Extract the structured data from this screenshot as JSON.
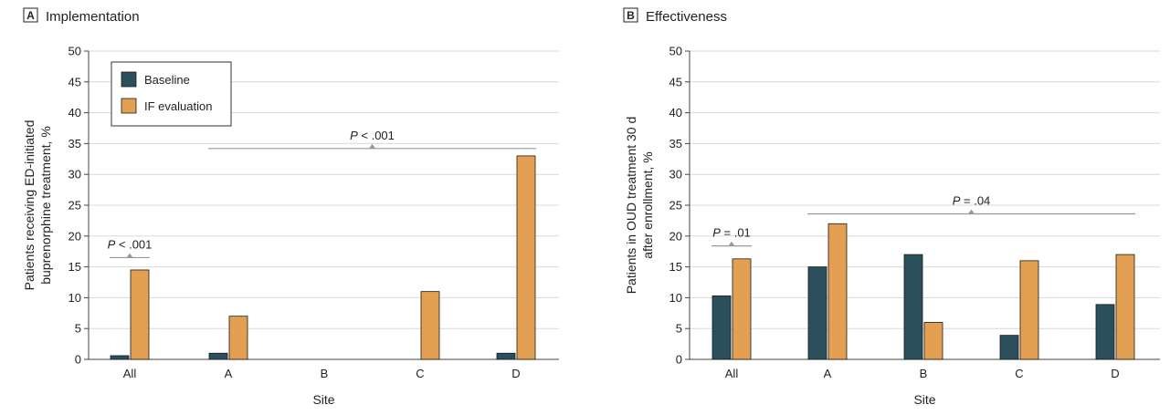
{
  "chart_data": [
    {
      "type": "bar",
      "panel_letter": "A",
      "title": "Implementation",
      "xlabel": "Site",
      "ylabel_lines": [
        "Patients receiving ED-initiated",
        "buprenorphine treatment, %"
      ],
      "categories": [
        "All",
        "A",
        "B",
        "C",
        "D"
      ],
      "ylim": [
        0,
        50
      ],
      "yticks": [
        0,
        5,
        10,
        15,
        20,
        25,
        30,
        35,
        40,
        45,
        50
      ],
      "grid": true,
      "legend_position": "top-left",
      "series": [
        {
          "name": "Baseline",
          "values": [
            0.6,
            1.0,
            0,
            0,
            1.0
          ]
        },
        {
          "name": "IF evaluation",
          "values": [
            14.5,
            7.0,
            0,
            11.0,
            33.0
          ]
        }
      ],
      "annotations": [
        {
          "text": "P < .001",
          "from": 0,
          "to": 0,
          "y": 16.5
        },
        {
          "text": "P < .001",
          "from": 1,
          "to": 4,
          "y": 34.2
        }
      ]
    },
    {
      "type": "bar",
      "panel_letter": "B",
      "title": "Effectiveness",
      "xlabel": "Site",
      "ylabel_lines": [
        "Patients in OUD treatment 30 d",
        "after enrollment, %"
      ],
      "categories": [
        "All",
        "A",
        "B",
        "C",
        "D"
      ],
      "ylim": [
        0,
        50
      ],
      "yticks": [
        0,
        5,
        10,
        15,
        20,
        25,
        30,
        35,
        40,
        45,
        50
      ],
      "grid": true,
      "series": [
        {
          "name": "Baseline",
          "values": [
            10.3,
            15.0,
            17.0,
            3.9,
            8.9
          ]
        },
        {
          "name": "IF evaluation",
          "values": [
            16.3,
            22.0,
            6.0,
            16.0,
            17.0
          ]
        }
      ],
      "annotations": [
        {
          "text": "P = .01",
          "from": 0,
          "to": 0,
          "y": 18.4
        },
        {
          "text": "P = .04",
          "from": 1,
          "to": 4,
          "y": 23.6
        }
      ]
    }
  ],
  "colors": {
    "baseline": "#2b4f5c",
    "if_evaluation": "#e3a052",
    "grid": "#d9d9d9",
    "axis": "#444444",
    "annotation_line": "#999999"
  }
}
